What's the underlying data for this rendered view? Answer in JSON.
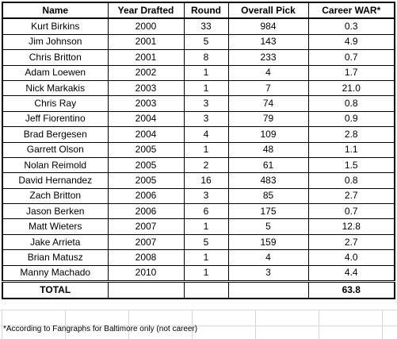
{
  "table": {
    "headers": [
      "Name",
      "Year Drafted",
      "Round",
      "Overall Pick",
      "Career WAR*"
    ],
    "rows": [
      [
        "Kurt Birkins",
        "2000",
        "33",
        "984",
        "0.3"
      ],
      [
        "Jim Johnson",
        "2001",
        "5",
        "143",
        "4.9"
      ],
      [
        "Chris Britton",
        "2001",
        "8",
        "233",
        "0.7"
      ],
      [
        "Adam Loewen",
        "2002",
        "1",
        "4",
        "1.7"
      ],
      [
        "Nick Markakis",
        "2003",
        "1",
        "7",
        "21.0"
      ],
      [
        "Chris Ray",
        "2003",
        "3",
        "74",
        "0.8"
      ],
      [
        "Jeff Fiorentino",
        "2004",
        "3",
        "79",
        "0.9"
      ],
      [
        "Brad Bergesen",
        "2004",
        "4",
        "109",
        "2.8"
      ],
      [
        "Garrett Olson",
        "2005",
        "1",
        "48",
        "1.1"
      ],
      [
        "Nolan Reimold",
        "2005",
        "2",
        "61",
        "1.5"
      ],
      [
        "David Hernandez",
        "2005",
        "16",
        "483",
        "0.8"
      ],
      [
        "Zach Britton",
        "2006",
        "3",
        "85",
        "2.7"
      ],
      [
        "Jason Berken",
        "2006",
        "6",
        "175",
        "0.7"
      ],
      [
        "Matt Wieters",
        "2007",
        "1",
        "5",
        "12.8"
      ],
      [
        "Jake Arrieta",
        "2007",
        "5",
        "159",
        "2.7"
      ],
      [
        "Brian Matusz",
        "2008",
        "1",
        "4",
        "4.0"
      ],
      [
        "Manny Machado",
        "2010",
        "1",
        "3",
        "4.4"
      ]
    ],
    "total": {
      "label": "TOTAL",
      "value": "63.8"
    }
  },
  "footnote": "*According to Fangraphs for Baltimore only (not career)"
}
